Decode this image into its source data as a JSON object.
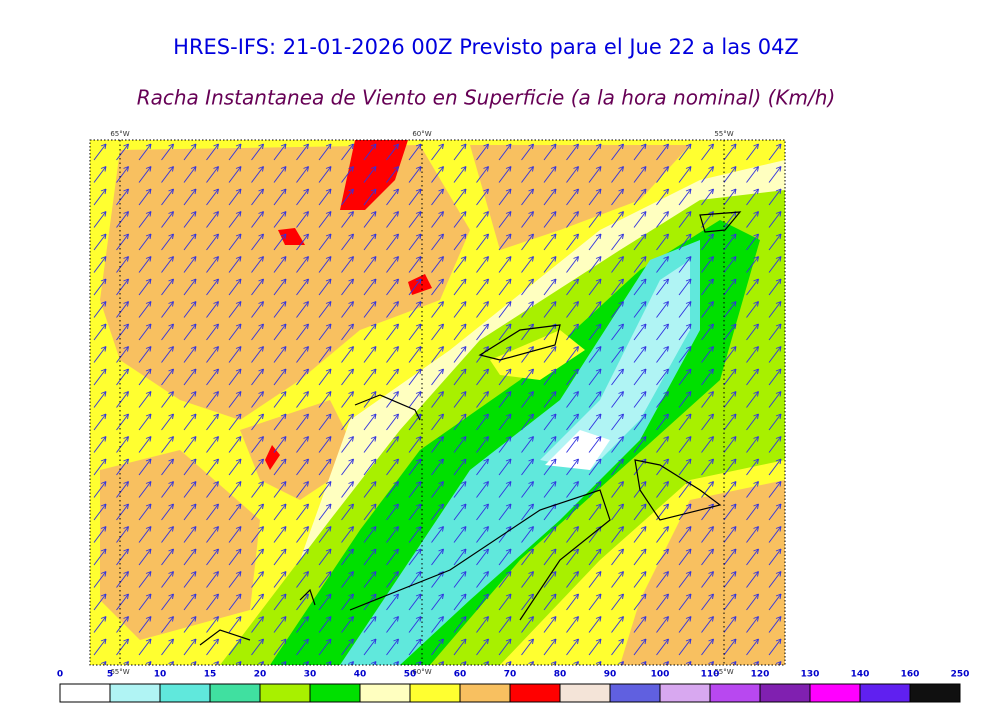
{
  "header": {
    "title": "HRES-IFS: 21-01-2026 00Z Previsto para el Jue 22 a las 04Z",
    "subtitle": "Racha Instantanea de Viento en Superficie (a la hora nominal) (Km/h)"
  },
  "map": {
    "longitudes": [
      "65°W",
      "60°W",
      "55°W"
    ]
  },
  "colorbar": {
    "ticks": [
      "0",
      "5",
      "10",
      "15",
      "20",
      "30",
      "40",
      "50",
      "60",
      "70",
      "80",
      "90",
      "100",
      "110",
      "120",
      "130",
      "140",
      "160",
      "250"
    ],
    "colors": [
      "#ffffff",
      "#b0f4f4",
      "#60e8dc",
      "#40e0a0",
      "#a8f000",
      "#00e000",
      "#ffffc0",
      "#ffff30",
      "#f8c060",
      "#ff0000",
      "#f4e4d8",
      "#6060e0",
      "#d8a8f0",
      "#b848f0",
      "#8020b0",
      "#ff00ff",
      "#6020f0",
      "#101010"
    ]
  }
}
